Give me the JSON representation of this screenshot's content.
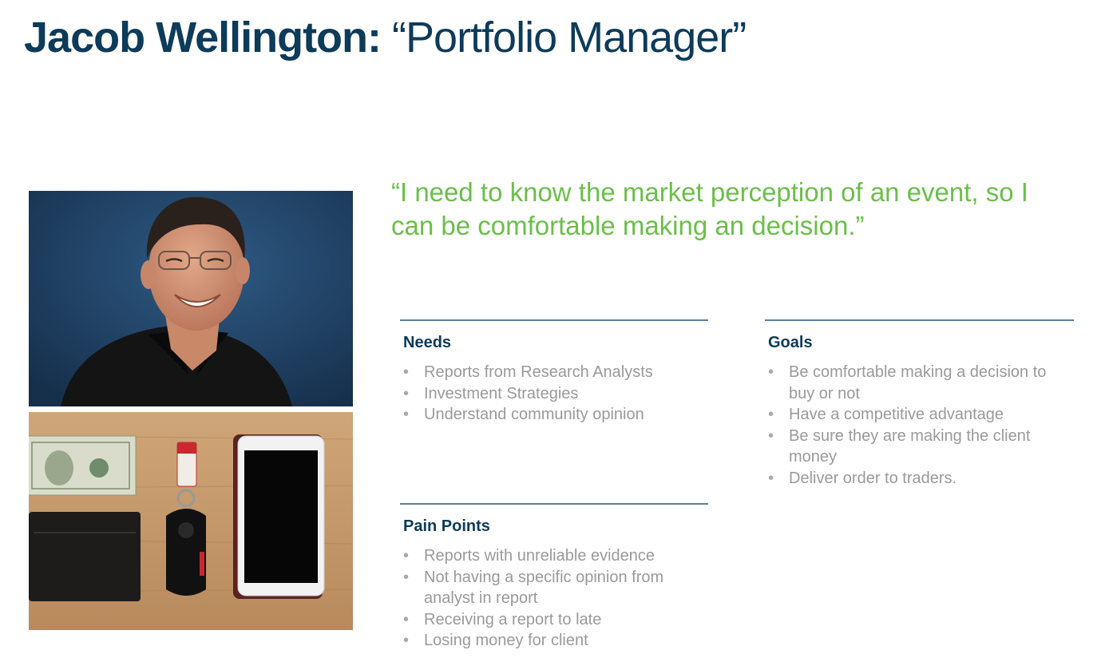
{
  "header": {
    "name": "Jacob Wellington:",
    "role": "“Portfolio Manager”"
  },
  "quote": "“I need to know the market perception of an event, so I can be comfortable making an decision.”",
  "images": {
    "portrait": "portrait-photo",
    "items": "desk-items-photo"
  },
  "needs": {
    "heading": "Needs",
    "items": [
      "Reports from Research Analysts",
      "Investment Strategies",
      "Understand community opinion"
    ]
  },
  "goals": {
    "heading": "Goals",
    "items": [
      "Be comfortable making a decision to buy or not",
      "Have a competitive advantage",
      "Be sure they are making the client money",
      "Deliver order to traders."
    ]
  },
  "pain_points": {
    "heading": "Pain Points",
    "items": [
      "Reports with unreliable evidence",
      "Not having a specific opinion from analyst in report",
      "Receiving a report to late",
      "Losing money for client"
    ]
  },
  "colors": {
    "title": "#0d3b5a",
    "quote": "#6bbf4a",
    "body_text": "#9a9a9a",
    "rule": "#5f7e9a"
  }
}
